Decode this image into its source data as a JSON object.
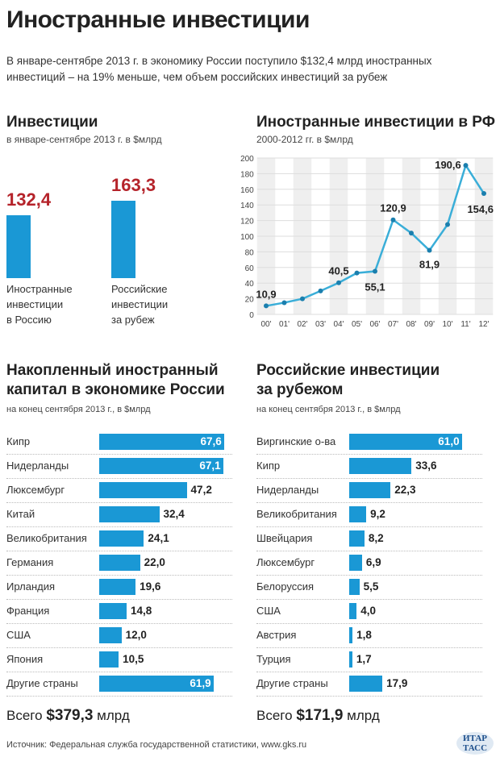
{
  "title": "Иностранные инвестиции",
  "lead": [
    "В январе-сентябре 2013 г. в экономику России поступило $132,4 млрд иностранных",
    "инвестиций – на 19% меньше, чем объем российских инвестиций за рубеж"
  ],
  "colors": {
    "bar": "#1a98d5",
    "highlight": "#b5232a",
    "line": "#3aaed8"
  },
  "chart_data": [
    {
      "type": "bar",
      "title": "Инвестиции",
      "subtitle": "в январе-сентябре 2013 г. в $млрд",
      "categories": [
        "Иностранные инвестиции в Россию",
        "Российские инвестиции за рубеж"
      ],
      "category_lines": [
        [
          "Иностранные",
          "инвестиции",
          "в Россию"
        ],
        [
          "Российские",
          "инвестиции",
          "за рубеж"
        ]
      ],
      "values": [
        132.4,
        163.3
      ],
      "value_labels": [
        "132,4",
        "163,3"
      ]
    },
    {
      "type": "line",
      "title": "Иностранные инвестиции в РФ",
      "subtitle": "2000-2012 гг. в $млрд",
      "x": [
        "00'",
        "01'",
        "02'",
        "03'",
        "04'",
        "05'",
        "06'",
        "07'",
        "08'",
        "09'",
        "10'",
        "11'",
        "12'"
      ],
      "values": [
        10.9,
        15,
        20,
        30,
        40.5,
        53,
        55.1,
        120.9,
        104,
        81.9,
        115,
        190.6,
        154.6
      ],
      "data_labels": {
        "0": "10,9",
        "4": "40,5",
        "6": "55,1",
        "7": "120,9",
        "9": "81,9",
        "11": "190,6",
        "12": "154,6"
      },
      "yticks": [
        "0",
        "20",
        "40",
        "60",
        "80",
        "100",
        "120",
        "140",
        "160",
        "180",
        "200"
      ],
      "ylim": [
        0,
        200
      ],
      "grid": true
    },
    {
      "type": "bar",
      "orientation": "horizontal",
      "title": "Накопленный иностранный капитал в экономике России",
      "title_lines": [
        "Накопленный иностранный",
        "капитал в экономике России"
      ],
      "subtitle": "на конец сентября 2013 г., в $млрд",
      "categories": [
        "Кипр",
        "Нидерланды",
        "Люксембург",
        "Китай",
        "Великобритания",
        "Германия",
        "Ирландия",
        "Франция",
        "США",
        "Япония",
        "Другие страны"
      ],
      "values": [
        67.6,
        67.1,
        47.2,
        32.4,
        24.1,
        22.0,
        19.6,
        14.8,
        12.0,
        10.5,
        61.9
      ],
      "value_labels": [
        "67,6",
        "67,1",
        "47,2",
        "32,4",
        "24,1",
        "22,0",
        "19,6",
        "14,8",
        "12,0",
        "10,5",
        "61,9"
      ],
      "total": {
        "prefix": "Всего",
        "value": "$379,3",
        "unit": "млрд"
      }
    },
    {
      "type": "bar",
      "orientation": "horizontal",
      "title": "Российские инвестиции за рубежом",
      "title_lines": [
        "Российские инвестиции",
        "за рубежом"
      ],
      "subtitle": "на конец сентября 2013 г., в $млрд",
      "categories": [
        "Виргинские о-ва",
        "Кипр",
        "Нидерланды",
        "Великобритания",
        "Швейцария",
        "Люксембург",
        "Белоруссия",
        "США",
        "Австрия",
        "Турция",
        "Другие страны"
      ],
      "values": [
        61.0,
        33.6,
        22.3,
        9.2,
        8.2,
        6.9,
        5.5,
        4.0,
        1.8,
        1.7,
        17.9
      ],
      "value_labels": [
        "61,0",
        "33,6",
        "22,3",
        "9,2",
        "8,2",
        "6,9",
        "5,5",
        "4,0",
        "1,8",
        "1,7",
        "17,9"
      ],
      "total": {
        "prefix": "Всего",
        "value": "$171,9",
        "unit": "млрд"
      }
    }
  ],
  "source": "Источник: Федеральная служба государственной статистики, www.gks.ru",
  "logo": "ИТАР ТАСС"
}
